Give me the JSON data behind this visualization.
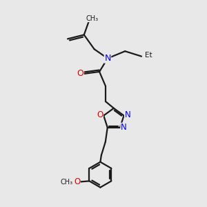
{
  "background_color": "#e8e8e8",
  "bond_color": "#1a1a1a",
  "nitrogen_color": "#0000ee",
  "oxygen_color": "#dd0000",
  "line_width": 1.6,
  "figsize": [
    3.0,
    3.0
  ],
  "dpi": 100,
  "xlim": [
    0,
    10
  ],
  "ylim": [
    0,
    10
  ]
}
